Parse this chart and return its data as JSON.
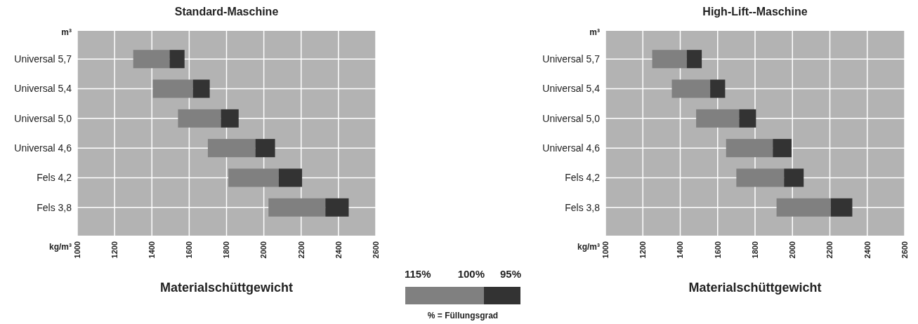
{
  "chart_data": [
    {
      "type": "bar",
      "orientation": "horizontal",
      "title": "Standard-Maschine",
      "xlabel": "Materialschüttgewicht",
      "ylabel": "m³",
      "annotations": [
        "kg/m³"
      ],
      "categories": [
        "Universal 5,7",
        "Universal 5,4",
        "Universal 5,0",
        "Universal 4,6",
        "Fels 4,2",
        "Fels 3,8"
      ],
      "series": [
        {
          "color": "#808080",
          "base": [
            1300,
            1405,
            1540,
            1700,
            1810,
            2025
          ],
          "values": [
            195,
            215,
            230,
            255,
            270,
            305
          ]
        },
        {
          "color": "#333333",
          "base": [
            1495,
            1620,
            1770,
            1955,
            2080,
            2330
          ],
          "values": [
            80,
            90,
            95,
            105,
            125,
            125
          ]
        }
      ],
      "xlim": [
        1000,
        2600
      ],
      "xticks": [
        1000,
        1200,
        1400,
        1600,
        1800,
        2000,
        2200,
        2400,
        2600
      ],
      "grid": true
    },
    {
      "type": "bar",
      "orientation": "horizontal",
      "title": "High-Lift--Maschine",
      "xlabel": "Materialschüttgewicht",
      "ylabel": "m³",
      "annotations": [
        "kg/m³"
      ],
      "categories": [
        "Universal 5,7",
        "Universal 5,4",
        "Universal 5,0",
        "Universal 4,6",
        "Fels 4,2",
        "Fels 3,8"
      ],
      "series": [
        {
          "color": "#808080",
          "base": [
            1250,
            1355,
            1485,
            1645,
            1700,
            1915
          ],
          "values": [
            185,
            205,
            230,
            250,
            255,
            290
          ]
        },
        {
          "color": "#333333",
          "base": [
            1435,
            1560,
            1715,
            1895,
            1955,
            2205
          ],
          "values": [
            80,
            80,
            90,
            100,
            105,
            115
          ]
        }
      ],
      "xlim": [
        1000,
        2600
      ],
      "xticks": [
        1000,
        1200,
        1400,
        1600,
        1800,
        2000,
        2200,
        2400,
        2600
      ],
      "grid": true
    },
    {
      "type": "other",
      "annotations": [
        "115%",
        "100%",
        "95%",
        "% = Füllungsgrad"
      ]
    }
  ]
}
